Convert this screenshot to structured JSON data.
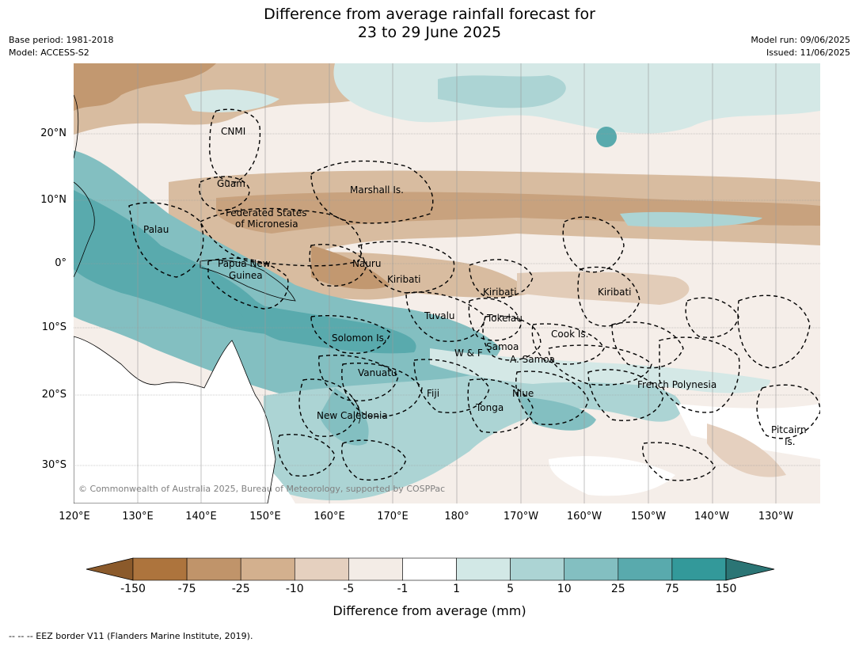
{
  "title_line1": "Difference from average rainfall forecast for",
  "title_line2": "23 to 29 June 2025",
  "meta": {
    "base_period": "Base period: 1981-2018",
    "model": "Model: ACCESS-S2",
    "model_run": "Model run: 09/06/2025",
    "issued": "Issued: 11/06/2025"
  },
  "copyright": "© Commonwealth of Australia 2025, Bureau of Meteorology, supported by COSPPac",
  "lat_ticks": [
    "20°N",
    "10°N",
    "0°",
    "10°S",
    "20°S",
    "30°S"
  ],
  "lon_ticks": [
    "120°E",
    "130°E",
    "140°E",
    "150°E",
    "160°E",
    "170°E",
    "180°",
    "170°W",
    "160°W",
    "150°W",
    "140°W",
    "130°W"
  ],
  "regions": [
    "CNMI",
    "Guam",
    "Marshall Is.",
    "Federated States",
    "of Micronesia",
    "Palau",
    "Papua New",
    "Guinea",
    "Nauru",
    "Kiribati",
    "Kiribati",
    "Kiribati",
    "Tuvalu",
    "Tokelau",
    "Solomon Is.",
    "Cook Is.",
    "W & F",
    "Samoa",
    "A. Samoa",
    "Vanuatu",
    "Fiji",
    "Niue",
    "French Polynesia",
    "Tonga",
    "New Caledonia",
    "Pitcairn",
    "Is."
  ],
  "colorbar": {
    "colors": [
      "#8b5a2b",
      "#ad743d",
      "#c0946a",
      "#d3b08e",
      "#e5d0bf",
      "#f3ece6",
      "#ffffff",
      "#d2e8e6",
      "#acd4d4",
      "#83bfc1",
      "#59aaad",
      "#33999a",
      "#2b7575"
    ],
    "ticks": [
      "-150",
      "-75",
      "-25",
      "-10",
      "-5",
      "-1",
      "1",
      "5",
      "10",
      "25",
      "75",
      "150"
    ],
    "label": "Difference from average (mm)"
  },
  "legend_note": "--  --  -- EEZ border V11 (Flanders Marine Institute, 2019)."
}
